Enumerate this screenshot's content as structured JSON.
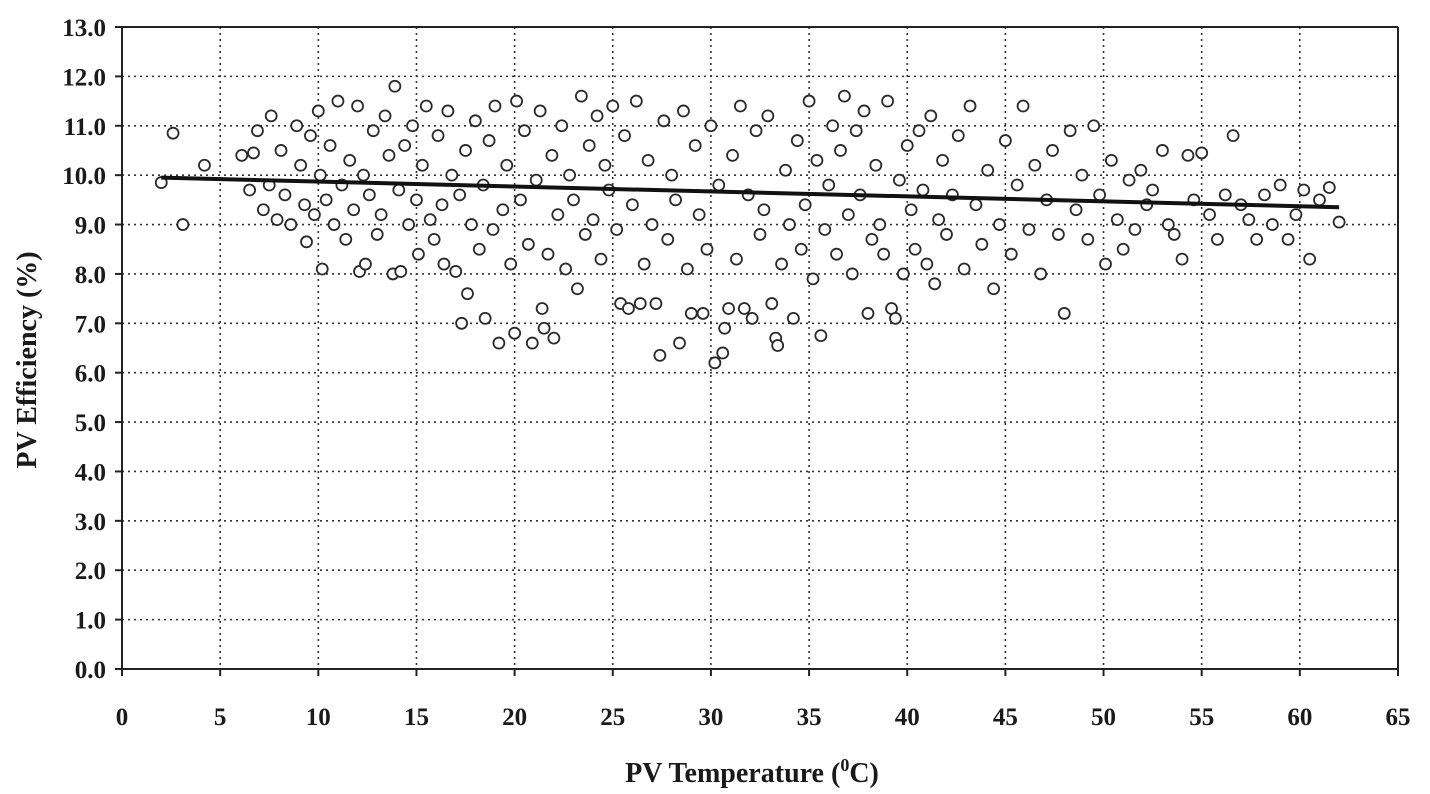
{
  "chart_data": {
    "type": "scatter",
    "title": "",
    "xlabel_main": "PV Temperature (",
    "xlabel_sup": "0",
    "xlabel_tail": "C)",
    "ylabel": "PV Efficiency (%)",
    "xlim": [
      0,
      65
    ],
    "ylim": [
      0,
      13
    ],
    "x_ticks": [
      "0",
      "5",
      "10",
      "15",
      "20",
      "25",
      "30",
      "35",
      "40",
      "45",
      "50",
      "55",
      "60",
      "65"
    ],
    "y_ticks": [
      "0.0",
      "1.0",
      "2.0",
      "3.0",
      "4.0",
      "5.0",
      "6.0",
      "7.0",
      "8.0",
      "9.0",
      "10.0",
      "11.0",
      "12.0",
      "13.0"
    ],
    "grid": true,
    "trendline": {
      "x": [
        2,
        62
      ],
      "y": [
        9.95,
        9.35
      ]
    },
    "series": [
      {
        "points": [
          [
            2.0,
            9.85
          ],
          [
            2.6,
            10.85
          ],
          [
            3.1,
            9.0
          ],
          [
            4.2,
            10.2
          ],
          [
            6.1,
            10.4
          ],
          [
            6.5,
            9.7
          ],
          [
            6.7,
            10.45
          ],
          [
            6.9,
            10.9
          ],
          [
            7.2,
            9.3
          ],
          [
            7.5,
            9.8
          ],
          [
            7.6,
            11.2
          ],
          [
            7.9,
            9.1
          ],
          [
            8.1,
            10.5
          ],
          [
            8.3,
            9.6
          ],
          [
            8.6,
            9.0
          ],
          [
            8.9,
            11.0
          ],
          [
            9.1,
            10.2
          ],
          [
            9.3,
            9.4
          ],
          [
            9.4,
            8.65
          ],
          [
            9.6,
            10.8
          ],
          [
            9.8,
            9.2
          ],
          [
            10.0,
            11.3
          ],
          [
            10.1,
            10.0
          ],
          [
            10.2,
            8.1
          ],
          [
            10.4,
            9.5
          ],
          [
            10.6,
            10.6
          ],
          [
            10.8,
            9.0
          ],
          [
            11.0,
            11.5
          ],
          [
            11.2,
            9.8
          ],
          [
            11.4,
            8.7
          ],
          [
            11.6,
            10.3
          ],
          [
            11.8,
            9.3
          ],
          [
            12.0,
            11.4
          ],
          [
            12.1,
            8.05
          ],
          [
            12.3,
            10.0
          ],
          [
            12.4,
            8.2
          ],
          [
            12.6,
            9.6
          ],
          [
            12.8,
            10.9
          ],
          [
            13.0,
            8.8
          ],
          [
            13.2,
            9.2
          ],
          [
            13.4,
            11.2
          ],
          [
            13.6,
            10.4
          ],
          [
            13.8,
            8.0
          ],
          [
            13.9,
            11.8
          ],
          [
            14.1,
            9.7
          ],
          [
            14.2,
            8.05
          ],
          [
            14.4,
            10.6
          ],
          [
            14.6,
            9.0
          ],
          [
            14.8,
            11.0
          ],
          [
            15.0,
            9.5
          ],
          [
            15.1,
            8.4
          ],
          [
            15.3,
            10.2
          ],
          [
            15.5,
            11.4
          ],
          [
            15.7,
            9.1
          ],
          [
            15.9,
            8.7
          ],
          [
            16.1,
            10.8
          ],
          [
            16.3,
            9.4
          ],
          [
            16.4,
            8.2
          ],
          [
            16.6,
            11.3
          ],
          [
            16.8,
            10.0
          ],
          [
            17.0,
            8.05
          ],
          [
            17.2,
            9.6
          ],
          [
            17.3,
            7.0
          ],
          [
            17.5,
            10.5
          ],
          [
            17.6,
            7.6
          ],
          [
            17.8,
            9.0
          ],
          [
            18.0,
            11.1
          ],
          [
            18.2,
            8.5
          ],
          [
            18.4,
            9.8
          ],
          [
            18.5,
            7.1
          ],
          [
            18.7,
            10.7
          ],
          [
            18.9,
            8.9
          ],
          [
            19.0,
            11.4
          ],
          [
            19.2,
            6.6
          ],
          [
            19.4,
            9.3
          ],
          [
            19.6,
            10.2
          ],
          [
            19.8,
            8.2
          ],
          [
            20.0,
            6.8
          ],
          [
            20.1,
            11.5
          ],
          [
            20.3,
            9.5
          ],
          [
            20.5,
            10.9
          ],
          [
            20.7,
            8.6
          ],
          [
            20.9,
            6.6
          ],
          [
            21.1,
            9.9
          ],
          [
            21.3,
            11.3
          ],
          [
            21.4,
            7.3
          ],
          [
            21.5,
            6.9
          ],
          [
            21.7,
            8.4
          ],
          [
            21.9,
            10.4
          ],
          [
            22.0,
            6.7
          ],
          [
            22.2,
            9.2
          ],
          [
            22.4,
            11.0
          ],
          [
            22.6,
            8.1
          ],
          [
            22.8,
            10.0
          ],
          [
            23.0,
            9.5
          ],
          [
            23.2,
            7.7
          ],
          [
            23.4,
            11.6
          ],
          [
            23.6,
            8.8
          ],
          [
            23.8,
            10.6
          ],
          [
            24.0,
            9.1
          ],
          [
            24.2,
            11.2
          ],
          [
            24.4,
            8.3
          ],
          [
            24.6,
            10.2
          ],
          [
            24.8,
            9.7
          ],
          [
            25.0,
            11.4
          ],
          [
            25.2,
            8.9
          ],
          [
            25.4,
            7.4
          ],
          [
            25.6,
            10.8
          ],
          [
            25.8,
            7.3
          ],
          [
            26.0,
            9.4
          ],
          [
            26.2,
            11.5
          ],
          [
            26.4,
            7.4
          ],
          [
            26.6,
            8.2
          ],
          [
            26.8,
            10.3
          ],
          [
            27.0,
            9.0
          ],
          [
            27.2,
            7.4
          ],
          [
            27.4,
            6.35
          ],
          [
            27.6,
            11.1
          ],
          [
            27.8,
            8.7
          ],
          [
            28.0,
            10.0
          ],
          [
            28.2,
            9.5
          ],
          [
            28.4,
            6.6
          ],
          [
            28.6,
            11.3
          ],
          [
            28.8,
            8.1
          ],
          [
            29.0,
            7.2
          ],
          [
            29.2,
            10.6
          ],
          [
            29.4,
            9.2
          ],
          [
            29.6,
            7.2
          ],
          [
            29.8,
            8.5
          ],
          [
            30.0,
            11.0
          ],
          [
            30.2,
            6.2
          ],
          [
            30.4,
            9.8
          ],
          [
            30.6,
            6.4
          ],
          [
            30.7,
            6.9
          ],
          [
            30.9,
            7.3
          ],
          [
            31.1,
            10.4
          ],
          [
            31.3,
            8.3
          ],
          [
            31.5,
            11.4
          ],
          [
            31.7,
            7.3
          ],
          [
            31.9,
            9.6
          ],
          [
            32.1,
            7.1
          ],
          [
            32.3,
            10.9
          ],
          [
            32.5,
            8.8
          ],
          [
            32.7,
            9.3
          ],
          [
            32.9,
            11.2
          ],
          [
            33.1,
            7.4
          ],
          [
            33.3,
            6.7
          ],
          [
            33.4,
            6.55
          ],
          [
            33.6,
            8.2
          ],
          [
            33.8,
            10.1
          ],
          [
            34.0,
            9.0
          ],
          [
            34.2,
            7.1
          ],
          [
            34.4,
            10.7
          ],
          [
            34.6,
            8.5
          ],
          [
            34.8,
            9.4
          ],
          [
            35.0,
            11.5
          ],
          [
            35.2,
            7.9
          ],
          [
            35.4,
            10.3
          ],
          [
            35.6,
            6.75
          ],
          [
            35.8,
            8.9
          ],
          [
            36.0,
            9.8
          ],
          [
            36.2,
            11.0
          ],
          [
            36.4,
            8.4
          ],
          [
            36.6,
            10.5
          ],
          [
            36.8,
            11.6
          ],
          [
            37.0,
            9.2
          ],
          [
            37.2,
            8.0
          ],
          [
            37.4,
            10.9
          ],
          [
            37.6,
            9.6
          ],
          [
            37.8,
            11.3
          ],
          [
            38.0,
            7.2
          ],
          [
            38.2,
            8.7
          ],
          [
            38.4,
            10.2
          ],
          [
            38.6,
            9.0
          ],
          [
            38.8,
            8.4
          ],
          [
            39.0,
            11.5
          ],
          [
            39.2,
            7.3
          ],
          [
            39.4,
            7.1
          ],
          [
            39.6,
            9.9
          ],
          [
            39.8,
            8.0
          ],
          [
            40.0,
            10.6
          ],
          [
            40.2,
            9.3
          ],
          [
            40.4,
            8.5
          ],
          [
            40.6,
            10.9
          ],
          [
            40.8,
            9.7
          ],
          [
            41.0,
            8.2
          ],
          [
            41.2,
            11.2
          ],
          [
            41.4,
            7.8
          ],
          [
            41.6,
            9.1
          ],
          [
            41.8,
            10.3
          ],
          [
            42.0,
            8.8
          ],
          [
            42.3,
            9.6
          ],
          [
            42.6,
            10.8
          ],
          [
            42.9,
            8.1
          ],
          [
            43.2,
            11.4
          ],
          [
            43.5,
            9.4
          ],
          [
            43.8,
            8.6
          ],
          [
            44.1,
            10.1
          ],
          [
            44.4,
            7.7
          ],
          [
            44.7,
            9.0
          ],
          [
            45.0,
            10.7
          ],
          [
            45.3,
            8.4
          ],
          [
            45.6,
            9.8
          ],
          [
            45.9,
            11.4
          ],
          [
            46.2,
            8.9
          ],
          [
            46.5,
            10.2
          ],
          [
            46.8,
            8.0
          ],
          [
            47.1,
            9.5
          ],
          [
            47.4,
            10.5
          ],
          [
            47.7,
            8.8
          ],
          [
            48.0,
            7.2
          ],
          [
            48.3,
            10.9
          ],
          [
            48.6,
            9.3
          ],
          [
            48.9,
            10.0
          ],
          [
            49.2,
            8.7
          ],
          [
            49.5,
            11.0
          ],
          [
            49.8,
            9.6
          ],
          [
            50.1,
            8.2
          ],
          [
            50.4,
            10.3
          ],
          [
            50.7,
            9.1
          ],
          [
            51.0,
            8.5
          ],
          [
            51.3,
            9.9
          ],
          [
            51.6,
            8.9
          ],
          [
            51.9,
            10.1
          ],
          [
            52.2,
            9.4
          ],
          [
            52.5,
            9.7
          ],
          [
            53.0,
            10.5
          ],
          [
            53.3,
            9.0
          ],
          [
            53.6,
            8.8
          ],
          [
            54.0,
            8.3
          ],
          [
            54.3,
            10.4
          ],
          [
            54.6,
            9.5
          ],
          [
            55.0,
            10.45
          ],
          [
            55.4,
            9.2
          ],
          [
            55.8,
            8.7
          ],
          [
            56.2,
            9.6
          ],
          [
            56.6,
            10.8
          ],
          [
            57.0,
            9.4
          ],
          [
            57.4,
            9.1
          ],
          [
            57.8,
            8.7
          ],
          [
            58.2,
            9.6
          ],
          [
            58.6,
            9.0
          ],
          [
            59.0,
            9.8
          ],
          [
            59.4,
            8.7
          ],
          [
            59.8,
            9.2
          ],
          [
            60.2,
            9.7
          ],
          [
            60.5,
            8.3
          ],
          [
            61.0,
            9.5
          ],
          [
            61.5,
            9.75
          ],
          [
            62.0,
            9.05
          ]
        ]
      }
    ]
  }
}
